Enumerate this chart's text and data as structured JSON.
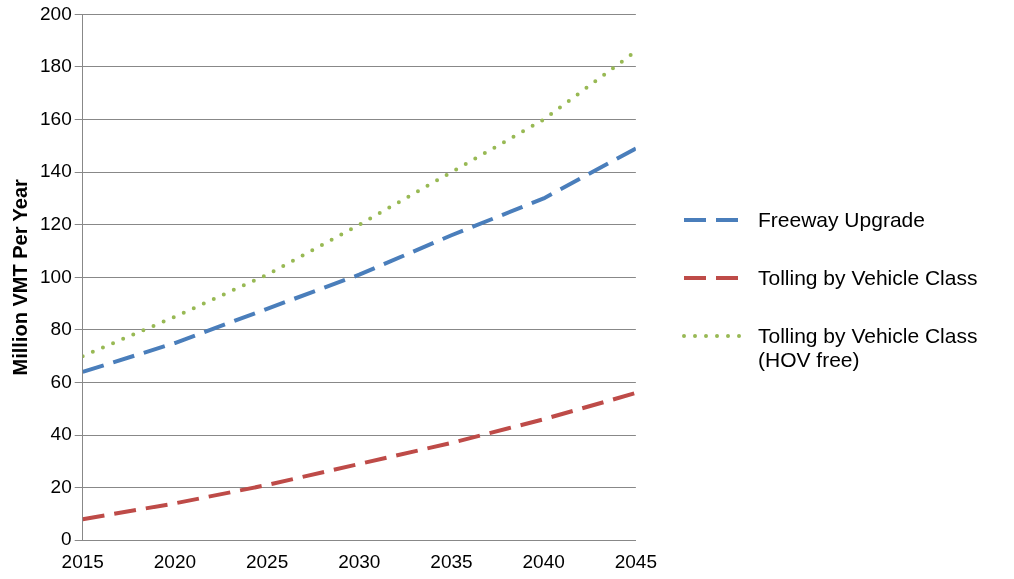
{
  "chart_data": {
    "type": "line",
    "ylabel": "Million VMT Per Year",
    "x": [
      2015,
      2020,
      2025,
      2030,
      2035,
      2040,
      2045
    ],
    "xlim": [
      2015,
      2045
    ],
    "xticks": [
      2015,
      2020,
      2025,
      2030,
      2035,
      2040,
      2045
    ],
    "ylim": [
      0,
      200
    ],
    "yticks": [
      0,
      20,
      40,
      60,
      80,
      100,
      120,
      140,
      160,
      180,
      200
    ],
    "grid": "y",
    "legend": "right",
    "marker": "none",
    "series": [
      {
        "name": "Freeway Upgrade",
        "color": "#4a7ebb",
        "line_style": "dashed",
        "values": [
          64,
          75,
          88,
          101,
          116,
          130,
          149
        ]
      },
      {
        "name": "Tolling by Vehicle Class",
        "color": "#be4b48",
        "line_style": "dashed",
        "values": [
          8,
          14,
          21,
          29,
          37,
          46,
          56
        ]
      },
      {
        "name": "Tolling by Vehicle Class (HOV free)",
        "color": "#98b954",
        "line_style": "dotted",
        "values": [
          70,
          85,
          101,
          120,
          140,
          160,
          186
        ]
      }
    ]
  }
}
